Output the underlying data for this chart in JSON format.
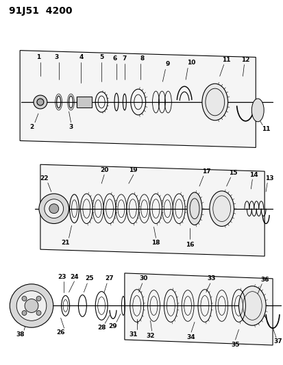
{
  "title": "91J51  4200",
  "bg_color": "#ffffff",
  "line_color": "#000000",
  "title_fontsize": 10,
  "label_fontsize": 6.5,
  "fig_width": 4.14,
  "fig_height": 5.33,
  "dpi": 100
}
